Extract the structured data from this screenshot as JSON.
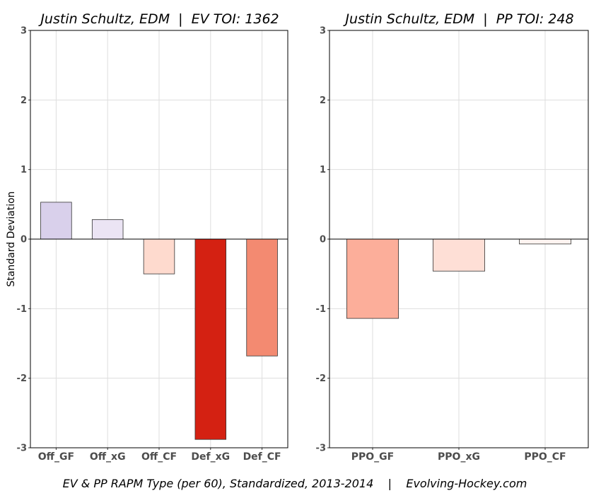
{
  "chart_data": [
    {
      "type": "bar",
      "title": "Justin Schultz, EDM  |  EV TOI: 1362",
      "ylabel": "Standard Deviation",
      "ylim": [
        -3,
        3
      ],
      "yticks": [
        3,
        2,
        1,
        0,
        -1,
        -2,
        -3
      ],
      "grid": true,
      "categories": [
        "Off_GF",
        "Off_xG",
        "Off_CF",
        "Def_xG",
        "Def_CF"
      ],
      "values": [
        0.53,
        0.28,
        -0.5,
        -2.88,
        -1.68
      ],
      "colors": [
        "#d9d0eb",
        "#ebe4f4",
        "#fedace",
        "#d42112",
        "#f38a71"
      ]
    },
    {
      "type": "bar",
      "title": "Justin Schultz, EDM  |  PP TOI: 248",
      "ylabel": "",
      "ylim": [
        -3,
        3
      ],
      "yticks": [
        3,
        2,
        1,
        0,
        -1,
        -2,
        -3
      ],
      "grid": true,
      "categories": [
        "PPO_GF",
        "PPO_xG",
        "PPO_CF"
      ],
      "values": [
        -1.14,
        -0.46,
        -0.07
      ],
      "colors": [
        "#fcae9a",
        "#fedfd6",
        "#fff4f1"
      ]
    }
  ],
  "caption": "EV & PP RAPM Type (per 60), Standardized, 2013-2014    |    Evolving-Hockey.com"
}
